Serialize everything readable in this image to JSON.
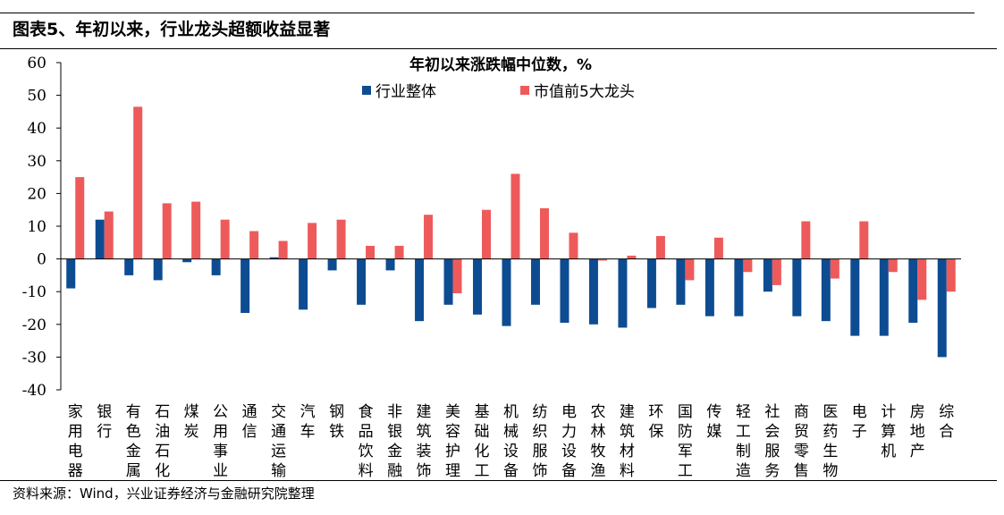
{
  "figure_title": "图表5、年初以来，行业龙头超额收益显著",
  "source": "资料来源：Wind，兴业证券经济与金融研究院整理",
  "colors": {
    "industry": "#0E4C92",
    "leaders": "#EE5A5A"
  },
  "chart_data": {
    "type": "bar",
    "title": "年初以来涨跌幅中位数，%",
    "ylim": [
      -40,
      60
    ],
    "yticks": [
      -40,
      -30,
      -20,
      -10,
      0,
      10,
      20,
      30,
      40,
      50,
      60
    ],
    "grid": false,
    "legend_position": "top-center",
    "categories": [
      "家用电器",
      "银行",
      "有色金属",
      "石油石化",
      "煤炭",
      "公用事业",
      "通信",
      "交通运输",
      "汽车",
      "钢铁",
      "食品饮料",
      "非银金融",
      "建筑装饰",
      "美容护理",
      "基础化工",
      "机械设备",
      "纺织服饰",
      "电力设备",
      "农林牧渔",
      "建筑材料",
      "环保",
      "国防军工",
      "传媒",
      "轻工制造",
      "社会服务",
      "商贸零售",
      "医药生物",
      "电子",
      "计算机",
      "房地产",
      "综合"
    ],
    "series": [
      {
        "name": "行业整体",
        "values": [
          -9,
          12,
          -5,
          -6.5,
          -1,
          -5,
          -16.5,
          0.5,
          -15.5,
          -3.5,
          -14,
          -3.5,
          -19,
          -14,
          -17,
          -20.5,
          -14,
          -19.5,
          -20,
          -21,
          -15,
          -14,
          -17.5,
          -17.5,
          -10,
          -17.5,
          -19,
          -23.5,
          -23.5,
          -19.5,
          -30
        ]
      },
      {
        "name": "市值前5大龙头",
        "values": [
          25,
          14.5,
          46.5,
          17,
          17.5,
          12,
          8.5,
          5.5,
          11,
          12,
          4,
          4,
          13.5,
          -10.5,
          15,
          26,
          15.5,
          8,
          -0.5,
          1,
          7,
          -6.5,
          6.5,
          -4,
          -8,
          11.5,
          -6,
          11.5,
          -4,
          -12.5,
          -10
        ]
      }
    ]
  }
}
